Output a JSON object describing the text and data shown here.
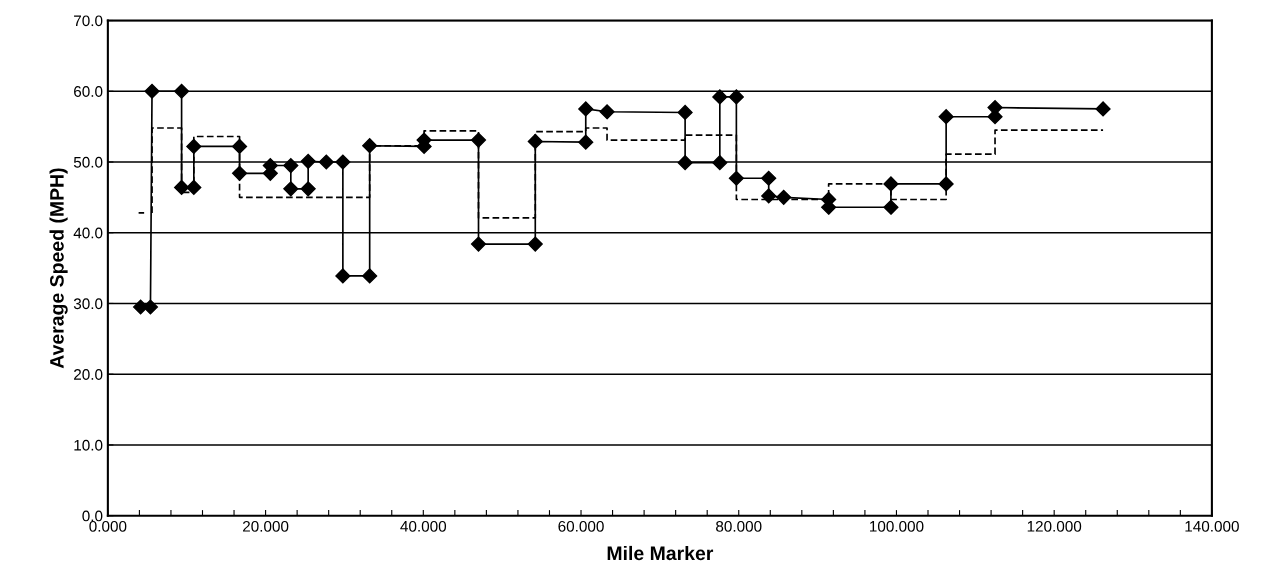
{
  "chart_data": {
    "type": "line",
    "xlabel": "Mile Marker",
    "ylabel": "Average Speed (MPH)",
    "xlim": [
      0,
      140
    ],
    "ylim": [
      0,
      70
    ],
    "xticks": [
      {
        "value": 0,
        "label": "0.000"
      },
      {
        "value": 4,
        "label": null
      },
      {
        "value": 8,
        "label": null
      },
      {
        "value": 12,
        "label": null
      },
      {
        "value": 16,
        "label": null
      },
      {
        "value": 20,
        "label": "20.000"
      },
      {
        "value": 24,
        "label": null
      },
      {
        "value": 28,
        "label": null
      },
      {
        "value": 32,
        "label": null
      },
      {
        "value": 36,
        "label": null
      },
      {
        "value": 40,
        "label": "40.000"
      },
      {
        "value": 44,
        "label": null
      },
      {
        "value": 48,
        "label": null
      },
      {
        "value": 52,
        "label": null
      },
      {
        "value": 56,
        "label": null
      },
      {
        "value": 60,
        "label": "60.000"
      },
      {
        "value": 64,
        "label": null
      },
      {
        "value": 68,
        "label": null
      },
      {
        "value": 72,
        "label": null
      },
      {
        "value": 76,
        "label": null
      },
      {
        "value": 80,
        "label": "80.000"
      },
      {
        "value": 84,
        "label": null
      },
      {
        "value": 88,
        "label": null
      },
      {
        "value": 92,
        "label": null
      },
      {
        "value": 96,
        "label": null
      },
      {
        "value": 100,
        "label": "100.000"
      },
      {
        "value": 104,
        "label": null
      },
      {
        "value": 108,
        "label": null
      },
      {
        "value": 112,
        "label": null
      },
      {
        "value": 116,
        "label": null
      },
      {
        "value": 120,
        "label": "120.000"
      },
      {
        "value": 124,
        "label": null
      },
      {
        "value": 128,
        "label": null
      },
      {
        "value": 132,
        "label": null
      },
      {
        "value": 136,
        "label": null
      },
      {
        "value": 140,
        "label": "140.000"
      }
    ],
    "yticks": [
      {
        "value": 0,
        "label": "0.0"
      },
      {
        "value": 10,
        "label": "10.0"
      },
      {
        "value": 20,
        "label": "20.0"
      },
      {
        "value": 30,
        "label": "30.0"
      },
      {
        "value": 40,
        "label": "40.0"
      },
      {
        "value": 50,
        "label": "50.0"
      },
      {
        "value": 60,
        "label": "60.0"
      },
      {
        "value": 70,
        "label": "70.0"
      }
    ],
    "grid": "y",
    "series": [
      {
        "color": "#000000",
        "line_style": "dashed",
        "marker": "none",
        "x": [
          3.9,
          4.6,
          5.0,
          5.6,
          5.6,
          9.35,
          9.35,
          10.9,
          10.9,
          16.7,
          16.7,
          33.2,
          33.2,
          40.1,
          40.1,
          47.0,
          47.0,
          54.2,
          54.2,
          60.6,
          60.6,
          63.3,
          63.3,
          73.2,
          73.2,
          79.7,
          79.7,
          91.4,
          91.4,
          99.3,
          99.3,
          106.3,
          106.3,
          112.5,
          112.5,
          126.2
        ],
        "values": [
          42.8,
          42.8,
          null,
          42.8,
          54.8,
          54.8,
          45.7,
          45.7,
          53.6,
          53.6,
          45.0,
          45.0,
          52.3,
          52.3,
          54.4,
          54.4,
          42.1,
          42.1,
          54.3,
          54.3,
          54.8,
          54.8,
          53.1,
          53.1,
          53.8,
          53.8,
          44.7,
          44.7,
          46.9,
          46.9,
          44.7,
          44.7,
          51.1,
          51.1,
          54.5,
          54.5
        ]
      },
      {
        "color": "#000000",
        "line_style": "solid",
        "marker": "diamond",
        "x": [
          4.15,
          5.4,
          5.6,
          9.35,
          9.35,
          10.9,
          10.9,
          16.7,
          16.7,
          20.6,
          20.6,
          23.2,
          23.2,
          25.4,
          25.4,
          27.7,
          29.8,
          29.8,
          33.2,
          33.2,
          40.1,
          40.1,
          47.0,
          47.0,
          54.2,
          54.2,
          60.6,
          60.6,
          63.3,
          73.2,
          73.2,
          77.6,
          77.6,
          79.7,
          79.7,
          83.8,
          83.8,
          85.7,
          91.4,
          91.4,
          99.3,
          99.3,
          106.3,
          106.3,
          112.5,
          112.5,
          126.2
        ],
        "values": [
          29.5,
          29.5,
          60.0,
          60.0,
          46.4,
          46.4,
          52.2,
          52.2,
          48.4,
          48.4,
          49.5,
          49.5,
          46.2,
          46.2,
          50.1,
          50.0,
          50.0,
          33.9,
          33.9,
          52.3,
          52.2,
          53.1,
          53.1,
          38.4,
          38.4,
          52.9,
          52.8,
          57.5,
          57.1,
          57.0,
          49.9,
          49.9,
          59.2,
          59.2,
          47.7,
          47.7,
          45.2,
          45.0,
          44.7,
          43.6,
          43.6,
          46.9,
          46.9,
          56.4,
          56.4,
          57.7,
          57.5
        ]
      }
    ]
  }
}
